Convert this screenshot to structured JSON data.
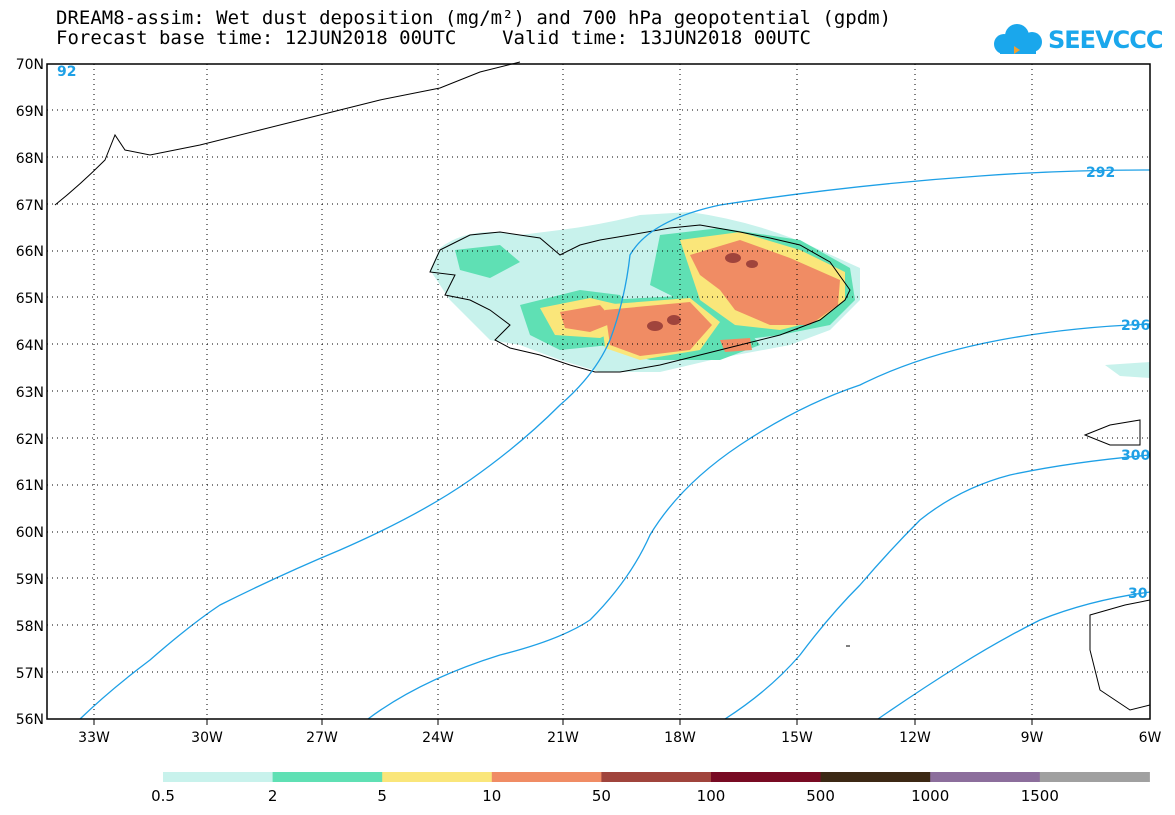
{
  "title_line1": "DREAM8-assim: Wet dust deposition (mg/m²) and 700 hPa geopotential (gpdm)",
  "title_line2": "Forecast base time: 12JUN2018 00UTC    Valid time: 13JUN2018 00UTC",
  "logo_text": "SEEVCCC",
  "logo_icon": "cloud-icon",
  "lat_labels": [
    "70N",
    "69N",
    "68N",
    "67N",
    "66N",
    "65N",
    "64N",
    "63N",
    "62N",
    "61N",
    "60N",
    "59N",
    "58N",
    "57N",
    "56N"
  ],
  "lon_labels": [
    "33W",
    "30W",
    "27W",
    "24W",
    "21W",
    "18W",
    "15W",
    "12W",
    "9W",
    "6W"
  ],
  "contour_labels": [
    "92",
    "292",
    "296",
    "300",
    "30"
  ],
  "contour_color": "#1ea0e6",
  "colorbar": {
    "colors": [
      "#c8f2ec",
      "#5fe0b4",
      "#fae67a",
      "#f08c64",
      "#a0443c",
      "#780a23",
      "#3c2814",
      "#8c6e9c",
      "#a0a0a0"
    ],
    "labels": [
      "0.5",
      "2",
      "5",
      "10",
      "50",
      "100",
      "500",
      "1000",
      "1500"
    ]
  }
}
